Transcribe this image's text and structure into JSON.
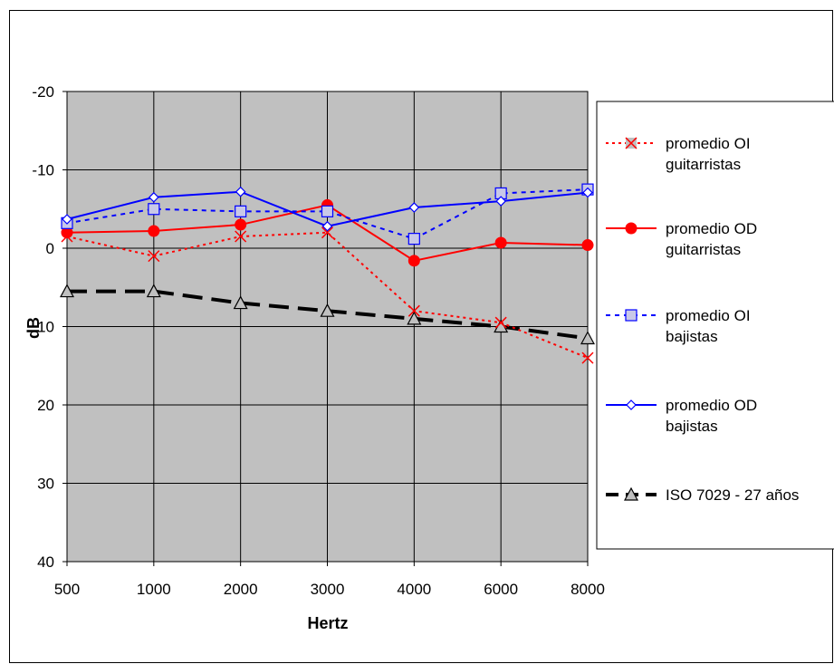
{
  "chart_data": {
    "type": "line",
    "title": "",
    "xlabel": "Hertz",
    "ylabel": "dB",
    "ylim": [
      -20,
      40
    ],
    "y_inverted": true,
    "y_ticks": [
      "-20",
      "-10",
      "0",
      "10",
      "20",
      "30",
      "40"
    ],
    "categories": [
      "500",
      "1000",
      "2000",
      "3000",
      "4000",
      "6000",
      "8000"
    ],
    "grid": true,
    "plot_background": "#c0c0c0",
    "legend_position": "right",
    "series": [
      {
        "name": "promedio OI guitarristas",
        "values": [
          -1.5,
          1.0,
          -1.5,
          -2.0,
          8.0,
          9.5,
          14.0
        ],
        "color": "#ff0000",
        "line_style": "dotted",
        "marker": "x"
      },
      {
        "name": "promedio OD guitarristas",
        "values": [
          -2.0,
          -2.2,
          -3.0,
          -5.5,
          1.6,
          -0.7,
          -0.4
        ],
        "color": "#ff0000",
        "line_style": "solid",
        "marker": "circle"
      },
      {
        "name": "promedio OI bajistas",
        "values": [
          -3.2,
          -5.0,
          -4.7,
          -4.7,
          -1.2,
          -7.0,
          -7.5
        ],
        "color": "#0000ff",
        "line_style": "dashed",
        "marker": "square"
      },
      {
        "name": "promedio OD bajistas",
        "values": [
          -3.7,
          -6.5,
          -7.2,
          -2.8,
          -5.2,
          -6.0,
          -7.1
        ],
        "color": "#0000ff",
        "line_style": "solid",
        "marker": "diamond"
      },
      {
        "name": "ISO 7029 - 27 años",
        "values": [
          5.5,
          5.5,
          7.0,
          8.0,
          9.0,
          10.0,
          11.5
        ],
        "color": "#000000",
        "line_style": "long-dash",
        "marker": "triangle"
      }
    ],
    "legend_entries": [
      {
        "line1": "promedio OI",
        "line2": "guitarristas"
      },
      {
        "line1": "promedio OD",
        "line2": "guitarristas"
      },
      {
        "line1": "promedio OI",
        "line2": "bajistas"
      },
      {
        "line1": "promedio OD",
        "line2": "bajistas"
      },
      {
        "line1": "ISO 7029 - 27 años",
        "line2": ""
      }
    ]
  }
}
